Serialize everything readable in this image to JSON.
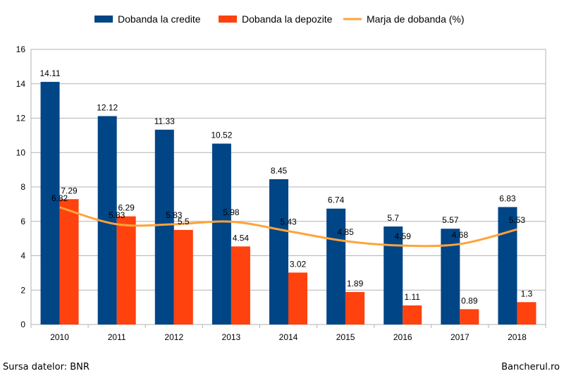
{
  "chart_data": {
    "type": "bar",
    "categories": [
      "2010",
      "2011",
      "2012",
      "2013",
      "2014",
      "2015",
      "2016",
      "2017",
      "2018"
    ],
    "series": [
      {
        "name": "Dobanda la credite",
        "type": "bar",
        "color": "#004586",
        "values": [
          14.11,
          12.12,
          11.33,
          10.52,
          8.45,
          6.74,
          5.7,
          5.57,
          6.83
        ]
      },
      {
        "name": "Dobanda la depozite",
        "type": "bar",
        "color": "#ff420e",
        "values": [
          7.29,
          6.29,
          5.5,
          4.54,
          3.02,
          1.89,
          1.11,
          0.89,
          1.3
        ]
      },
      {
        "name": "Marja de dobanda (%)",
        "type": "line",
        "color": "#ffa33a",
        "values": [
          6.82,
          5.83,
          5.83,
          5.98,
          5.43,
          4.85,
          4.59,
          4.68,
          5.53
        ]
      }
    ],
    "title": "",
    "xlabel": "",
    "ylabel": "",
    "ylim": [
      0,
      16
    ],
    "yticks": [
      "0",
      "2",
      "4",
      "6",
      "8",
      "10",
      "12",
      "14",
      "16"
    ],
    "grid": true,
    "legend": "top"
  },
  "footer": {
    "source": "Sursa datelor: BNR",
    "brand": "Bancherul.ro"
  }
}
